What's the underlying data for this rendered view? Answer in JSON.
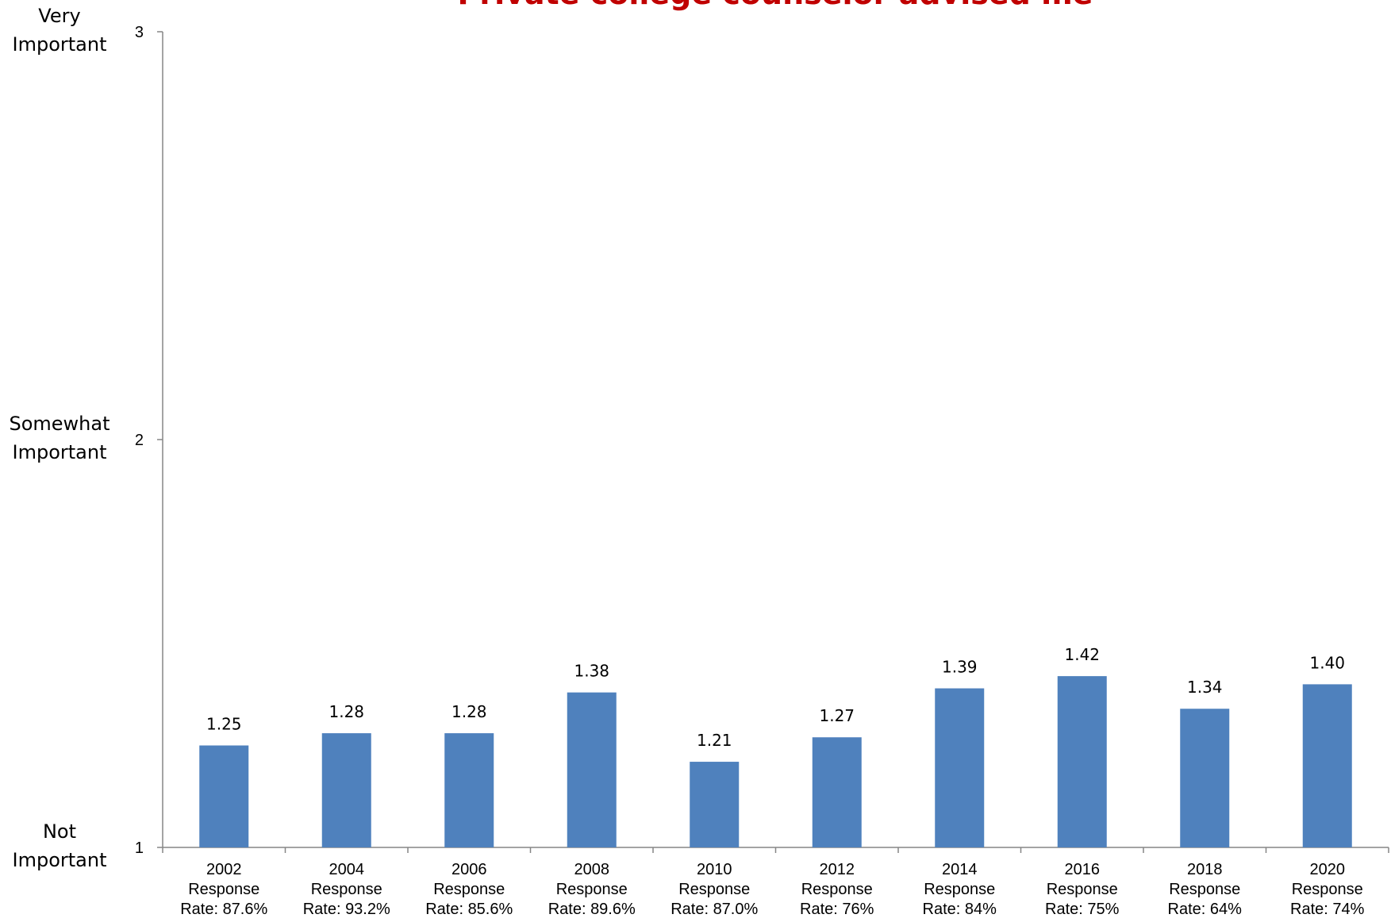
{
  "chart_data": {
    "type": "bar",
    "title": "Private college counselor advised me",
    "categories": [
      [
        "2002",
        "Response",
        "Rate: 87.6%"
      ],
      [
        "2004",
        "Response",
        "Rate: 93.2%"
      ],
      [
        "2006",
        "Response",
        "Rate: 85.6%"
      ],
      [
        "2008",
        "Response",
        "Rate: 89.6%"
      ],
      [
        "2010",
        "Response",
        "Rate: 87.0%"
      ],
      [
        "2012",
        "Response",
        "Rate: 76%"
      ],
      [
        "2014",
        "Response",
        "Rate: 84%"
      ],
      [
        "2016",
        "Response",
        "Rate: 75%"
      ],
      [
        "2018",
        "Response",
        "Rate: 64%"
      ],
      [
        "2020",
        "Response",
        "Rate: 74%"
      ]
    ],
    "values": [
      1.25,
      1.28,
      1.28,
      1.38,
      1.21,
      1.27,
      1.39,
      1.42,
      1.34,
      1.4
    ],
    "data_labels": [
      "1.25",
      "1.28",
      "1.28",
      "1.38",
      "1.21",
      "1.27",
      "1.39",
      "1.42",
      "1.34",
      "1.40"
    ],
    "ylim": [
      1,
      3
    ],
    "yticks": [
      1,
      2,
      3
    ],
    "y_scale_labels": [
      {
        "value": 3,
        "lines": [
          "Very",
          "Important"
        ]
      },
      {
        "value": 2,
        "lines": [
          "Somewhat",
          "Important"
        ]
      },
      {
        "value": 1,
        "lines": [
          "Not",
          "Important"
        ]
      }
    ],
    "bar_color": "#4f81bd",
    "title_color": "#c00000",
    "grid": false,
    "legend": "none"
  }
}
